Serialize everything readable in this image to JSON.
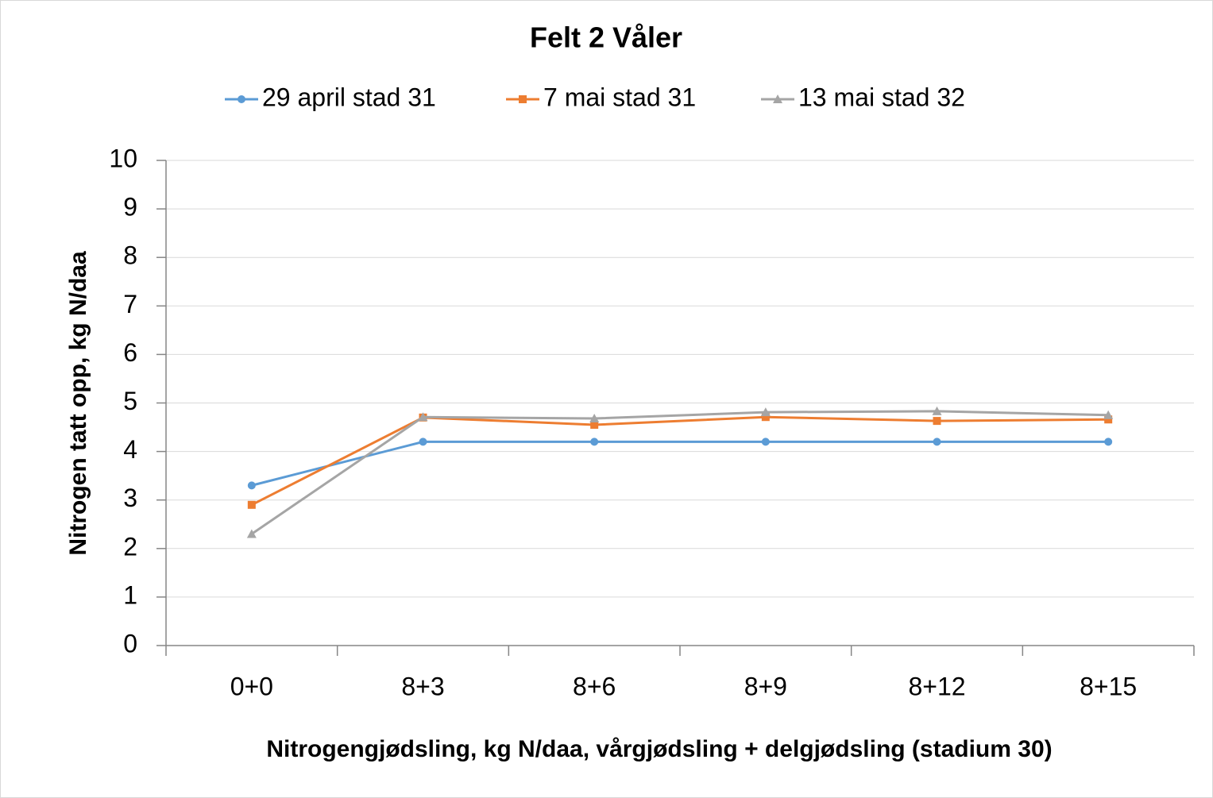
{
  "chart_data": {
    "type": "line",
    "title": "Felt 2 Våler",
    "x_label": "Nitrogengjødsling, kg N/daa, vårgjødsling + delgjødsling (stadium 30)",
    "y_label": "Nitrogen tatt opp, kg N/daa",
    "categories": [
      "0+0",
      "8+3",
      "8+6",
      "8+9",
      "8+12",
      "8+15"
    ],
    "series": [
      {
        "name": "29 april stad 31",
        "color": "#5b9bd5",
        "marker": "circle",
        "values": [
          3.3,
          4.2,
          4.2,
          4.2,
          4.2,
          4.2
        ]
      },
      {
        "name": "7 mai stad 31",
        "color": "#ed7d31",
        "marker": "square",
        "values": [
          2.9,
          4.7,
          4.55,
          4.71,
          4.63,
          4.66
        ]
      },
      {
        "name": "13 mai stad 32",
        "color": "#a5a5a5",
        "marker": "triangle",
        "values": [
          2.3,
          4.71,
          4.68,
          4.81,
          4.83,
          4.75
        ]
      }
    ],
    "ylim": [
      0,
      10
    ],
    "yticks": [
      0,
      1,
      2,
      3,
      4,
      5,
      6,
      7,
      8,
      9,
      10
    ],
    "grid": true,
    "legend": "top"
  }
}
